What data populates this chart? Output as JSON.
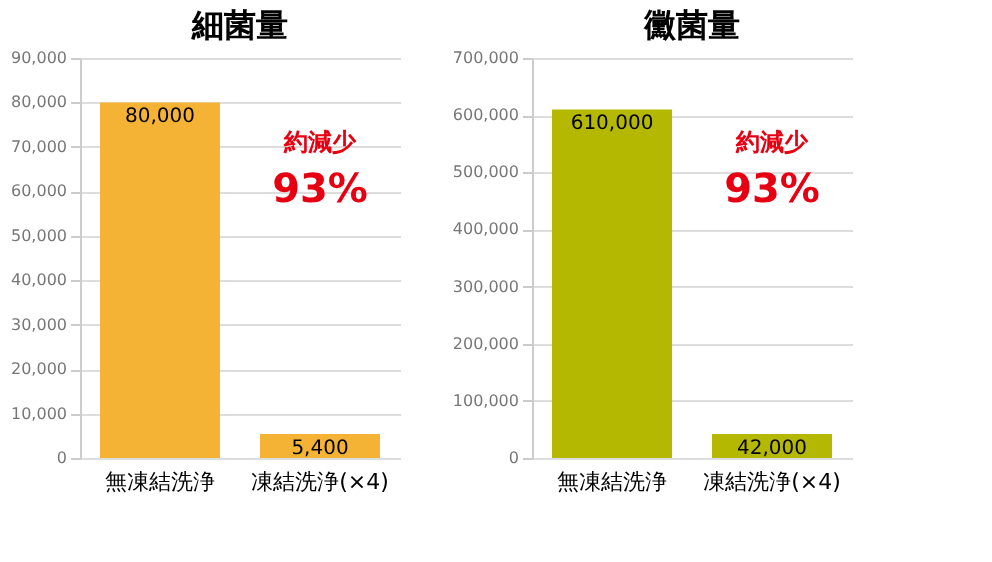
{
  "chart_data": [
    {
      "type": "bar",
      "title": "細菌量",
      "categories": [
        "無凍結洗浄",
        "凍結洗浄(×4)"
      ],
      "values": [
        80000,
        5400
      ],
      "value_labels": [
        "80,000",
        "5,400"
      ],
      "color": "#f5b335",
      "ylim": [
        0,
        90000
      ],
      "yticks": [
        0,
        {
          "value": 10000,
          "label": "10,000"
        },
        {
          "value": 20000,
          "label": "20,000"
        },
        {
          "value": 30000,
          "label": "30,000"
        },
        {
          "value": 40000,
          "label": "40,000"
        },
        {
          "value": 50000,
          "label": "50,000"
        },
        {
          "value": 60000,
          "label": "60,000"
        },
        {
          "value": 70000,
          "label": "70,000"
        },
        {
          "value": 80000,
          "label": "80,000"
        },
        {
          "value": 90000,
          "label": "90,000"
        }
      ],
      "grid": "y",
      "annotations": [
        "約減少",
        "93%"
      ]
    },
    {
      "type": "bar",
      "title": "黴菌量",
      "categories": [
        "無凍結洗浄",
        "凍結洗浄(×4)"
      ],
      "values": [
        610000,
        42000
      ],
      "value_labels": [
        "610,000",
        "42,000"
      ],
      "color": "#b5b800",
      "ylim": [
        0,
        700000
      ],
      "yticks": [
        0,
        {
          "value": 100000,
          "label": "100,000"
        },
        {
          "value": 200000,
          "label": "200,000"
        },
        {
          "value": 300000,
          "label": "300,000"
        },
        {
          "value": 400000,
          "label": "400,000"
        },
        {
          "value": 500000,
          "label": "500,000"
        },
        {
          "value": 600000,
          "label": "600,000"
        },
        {
          "value": 700000,
          "label": "700,000"
        }
      ],
      "grid": "y",
      "annotations": [
        "約減少",
        "93%"
      ]
    }
  ]
}
